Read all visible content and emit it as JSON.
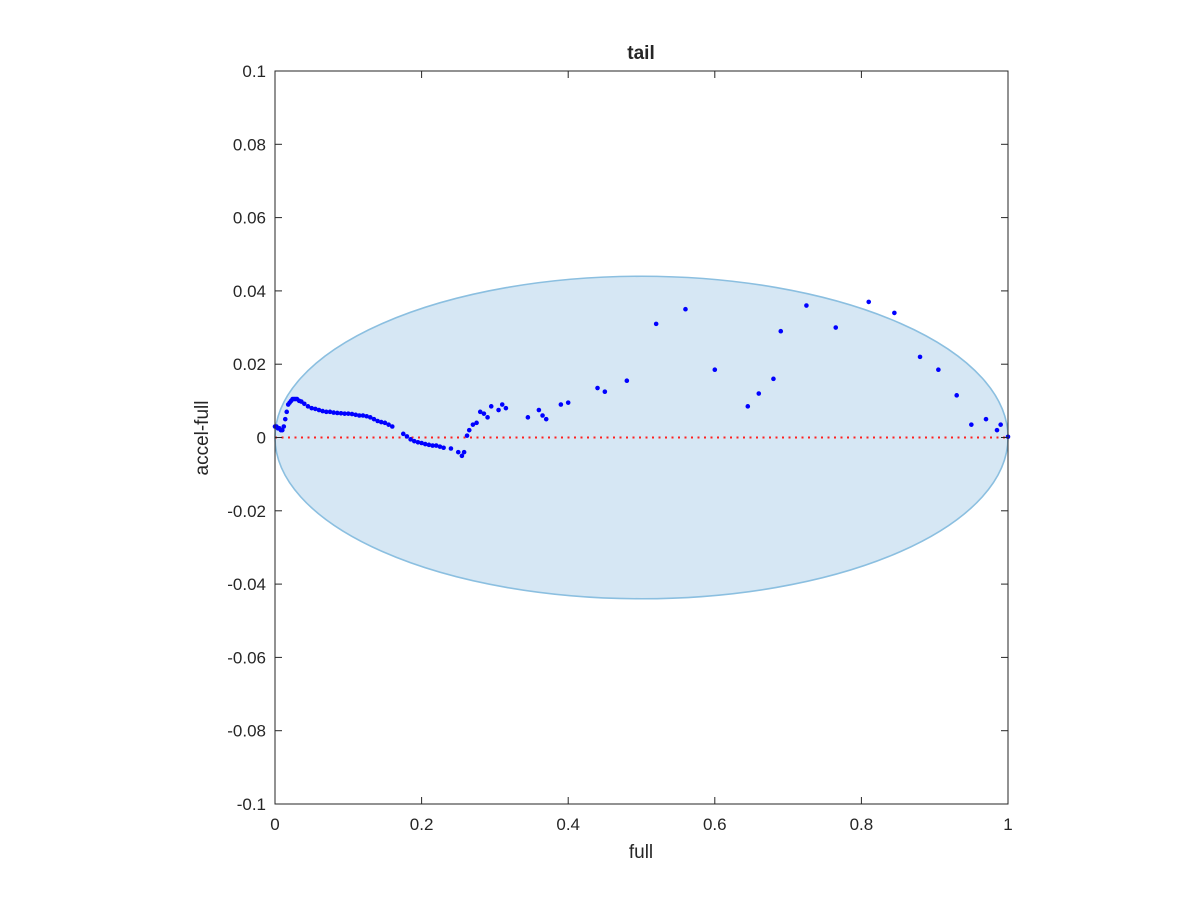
{
  "chart_data": {
    "type": "scatter",
    "title": "tail",
    "xlabel": "full",
    "ylabel": "accel-full",
    "xlim": [
      0,
      1
    ],
    "ylim": [
      -0.1,
      0.1
    ],
    "x_ticks": [
      0,
      0.2,
      0.4,
      0.6,
      0.8,
      1
    ],
    "x_tick_labels": [
      "0",
      "0.2",
      "0.4",
      "0.6",
      "0.8",
      "1"
    ],
    "y_ticks": [
      0.1,
      0.08,
      0.06,
      0.04,
      0.02,
      0,
      -0.02,
      -0.04,
      -0.06,
      -0.08,
      -0.1
    ],
    "y_tick_labels": [
      "0.1",
      "0.08",
      "0.06",
      "0.04",
      "0.02",
      "0",
      "-0.02",
      "-0.04",
      "-0.06",
      "-0.08",
      "-0.1"
    ],
    "grid": false,
    "colors": {
      "points": "#0000ff",
      "ellipse_fill": "#d6e7f4",
      "ellipse_edge": "#8bbfe0",
      "zero_line": "#ff2020",
      "axes": "#262626"
    },
    "ellipse": {
      "center": [
        0.5,
        0
      ],
      "semi_axis_x": 0.5,
      "semi_axis_y": 0.044
    },
    "reference_line": {
      "y": 0,
      "style": "dotted"
    },
    "series": [
      {
        "x": [
          0,
          0.002,
          0.004,
          0.006,
          0.008,
          0.01,
          0.012,
          0.014,
          0.016,
          0.018,
          0.02,
          0.022,
          0.024,
          0.026,
          0.028,
          0.03,
          0.033,
          0.036,
          0.04,
          0.045,
          0.05,
          0.055,
          0.06,
          0.065,
          0.07,
          0.075,
          0.08,
          0.085,
          0.09,
          0.095,
          0.1,
          0.105,
          0.11,
          0.115,
          0.12,
          0.125,
          0.13,
          0.135,
          0.14,
          0.145,
          0.15,
          0.155,
          0.16,
          0.175,
          0.18,
          0.185,
          0.19,
          0.195,
          0.2,
          0.205,
          0.21,
          0.215,
          0.22,
          0.225,
          0.23,
          0.24,
          0.25,
          0.255,
          0.258,
          0.262,
          0.265,
          0.27,
          0.275,
          0.28,
          0.285,
          0.29,
          0.295,
          0.305,
          0.31,
          0.315,
          0.345,
          0.36,
          0.365,
          0.37,
          0.39,
          0.4,
          0.44,
          0.45,
          0.48,
          0.52,
          0.56,
          0.6,
          0.645,
          0.66,
          0.68,
          0.69,
          0.725,
          0.765,
          0.81,
          0.845,
          0.88,
          0.905,
          0.93,
          0.95,
          0.97,
          0.985,
          0.99,
          1.0
        ],
        "y": [
          0.003,
          0.003,
          0.0025,
          0.0025,
          0.002,
          0.002,
          0.003,
          0.005,
          0.007,
          0.009,
          0.0095,
          0.01,
          0.0105,
          0.0105,
          0.0105,
          0.0105,
          0.01,
          0.0098,
          0.0092,
          0.0085,
          0.008,
          0.0078,
          0.0075,
          0.0072,
          0.007,
          0.007,
          0.0068,
          0.0067,
          0.0066,
          0.0065,
          0.0065,
          0.0064,
          0.0062,
          0.006,
          0.006,
          0.0058,
          0.0055,
          0.005,
          0.0045,
          0.0042,
          0.004,
          0.0035,
          0.003,
          0.001,
          0.0003,
          -0.0005,
          -0.001,
          -0.0013,
          -0.0015,
          -0.0018,
          -0.002,
          -0.0022,
          -0.0022,
          -0.0025,
          -0.0028,
          -0.003,
          -0.004,
          -0.005,
          -0.004,
          0.0005,
          0.002,
          0.0035,
          0.004,
          0.007,
          0.0065,
          0.0055,
          0.0085,
          0.0075,
          0.009,
          0.008,
          0.0055,
          0.0075,
          0.006,
          0.005,
          0.009,
          0.0095,
          0.0135,
          0.0125,
          0.0155,
          0.031,
          0.035,
          0.0185,
          0.0085,
          0.012,
          0.016,
          0.029,
          0.036,
          0.03,
          0.037,
          0.034,
          0.022,
          0.0185,
          0.0115,
          0.0035,
          0.005,
          0.002,
          0.0035,
          0.0002
        ]
      }
    ]
  }
}
